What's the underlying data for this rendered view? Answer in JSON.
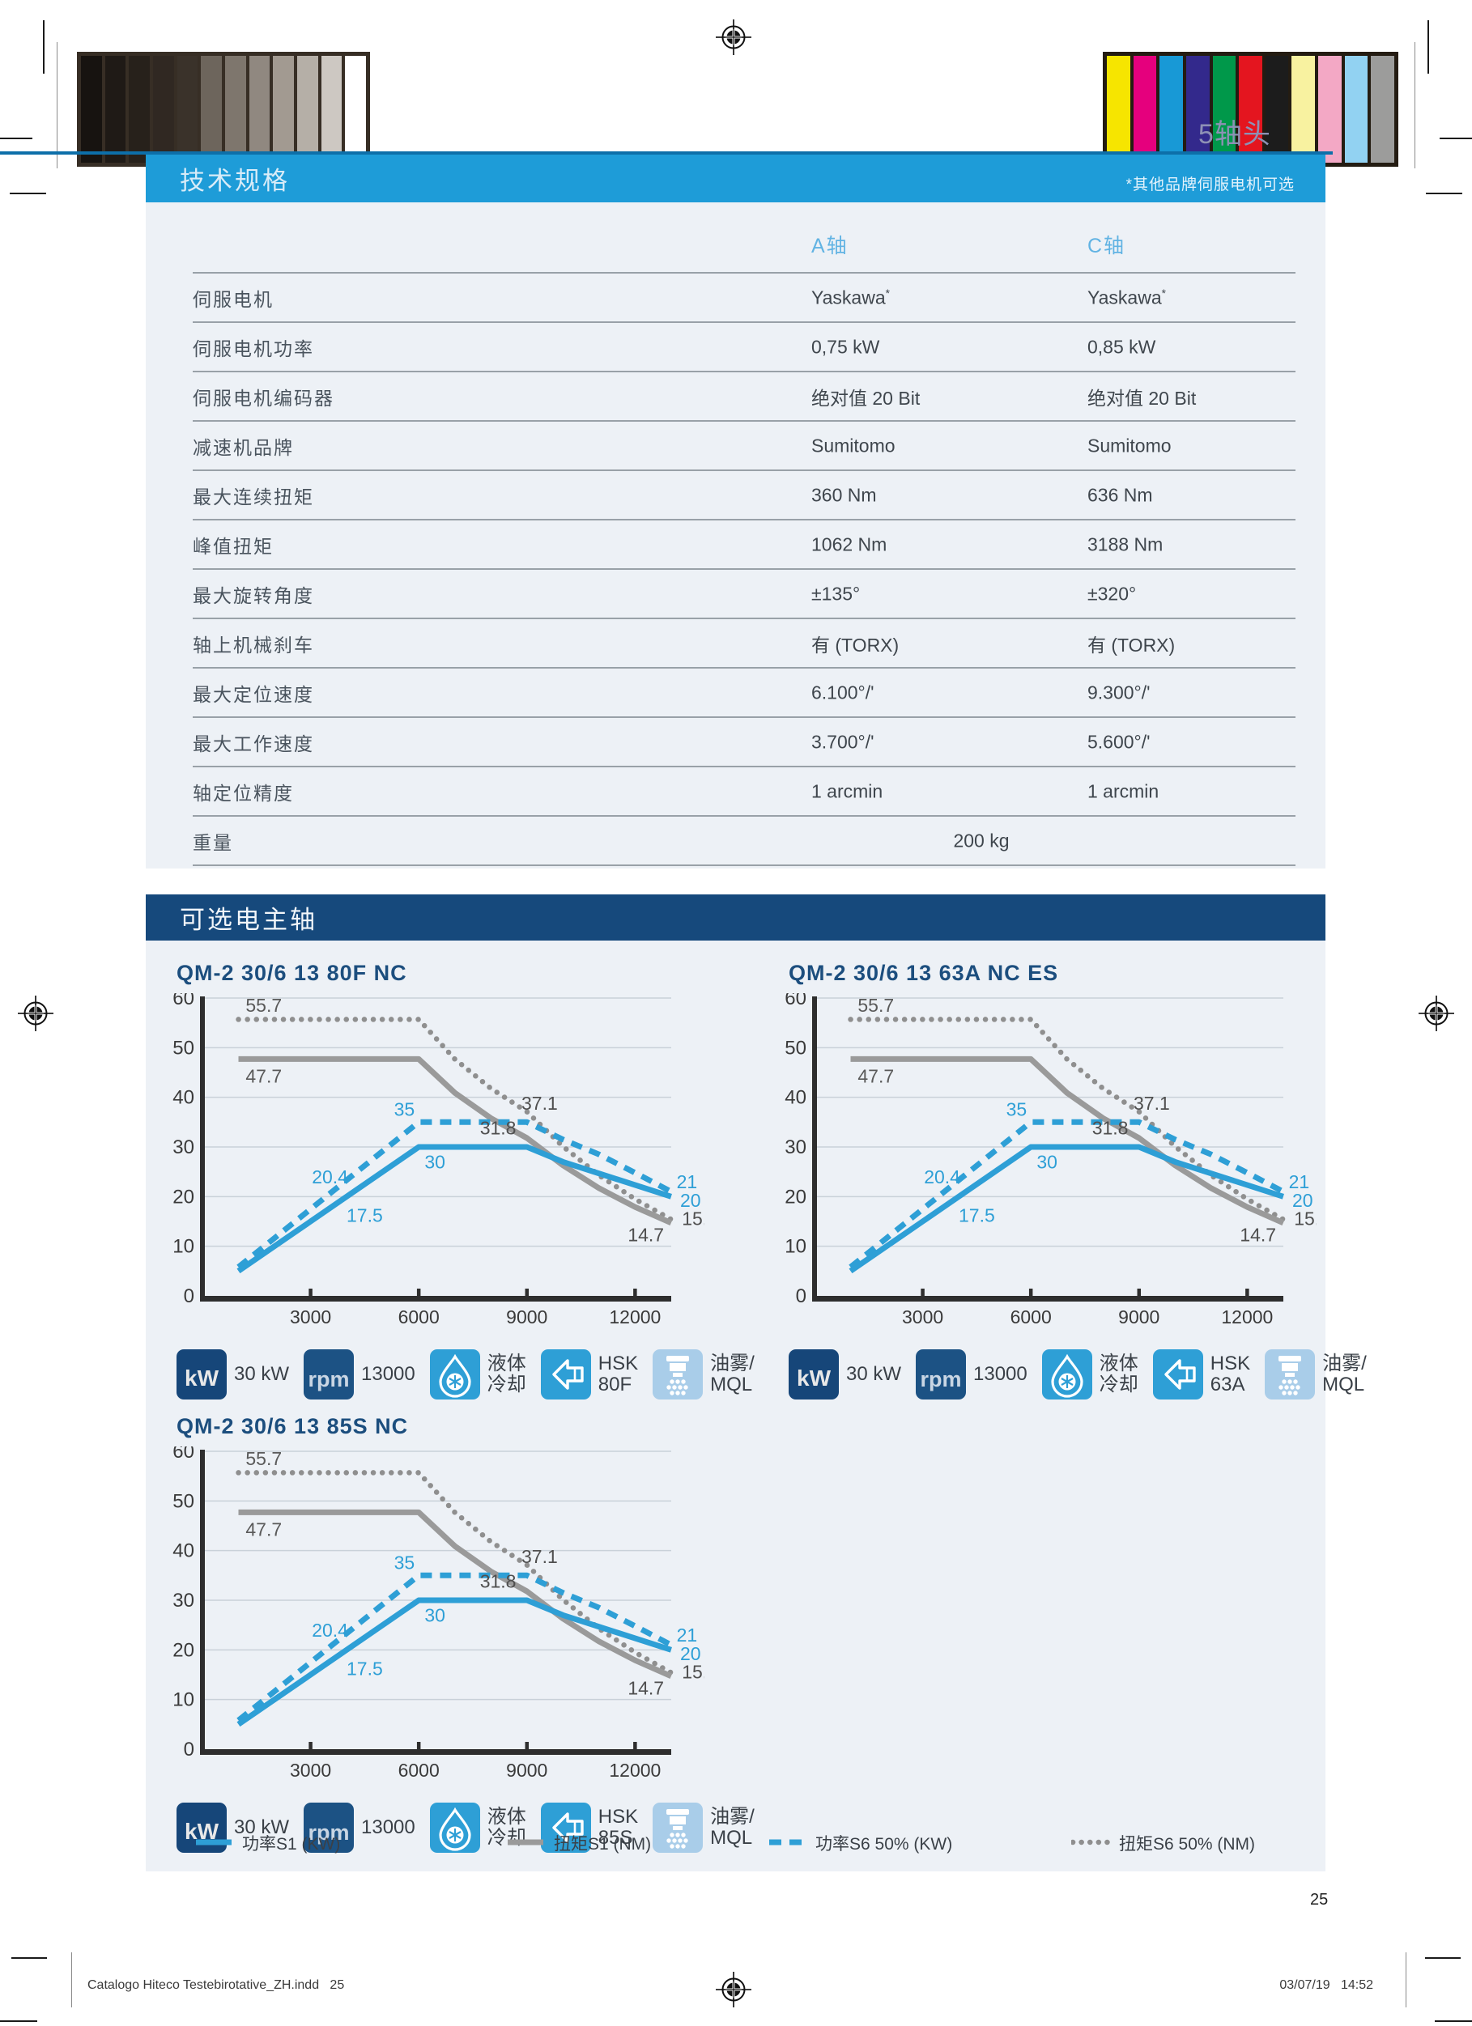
{
  "page": {
    "tag": "5轴头",
    "number": "25",
    "footer_left": "Catalogo Hiteco Testebirotative_ZH.indd   25",
    "footer_right": "03/07/19   14:52"
  },
  "colors": {
    "accent_blue": "#1E9CD8",
    "navy": "#16497C",
    "section_bg": "#EDF1F6",
    "rule_blue": "#0D6FA9",
    "tag_color": "#8E91B5",
    "line_blue": "#2E9FD6",
    "line_gray": "#9A9A9A",
    "grid": "#C9D1D9",
    "axis": "#2E2E2E",
    "spec_header_text": "#D8ECF8",
    "column_header_text": "#61B3E3",
    "chart_title_text": "#1C4E7E",
    "kw_badge": "#164679",
    "rpm_badge": "#1C5284",
    "coolant_badge": "#2E9FD6",
    "hsk_badge": "#2E9FD6",
    "mist_badge": "#A9CDE9"
  },
  "print_marks": {
    "grayscale": [
      "#171310",
      "#1f1a16",
      "#27211b",
      "#302822",
      "#3a322a",
      "#6d655c",
      "#7e766d",
      "#908880",
      "#a29a91",
      "#b5afa7",
      "#cdc8c2",
      "#ffffff"
    ],
    "color_bar": [
      "#f6e500",
      "#e5007d",
      "#1899d6",
      "#33298c",
      "#00984a",
      "#e4151f",
      "#1c1c1c",
      "#f8f2a0",
      "#f3a8c5",
      "#92d2f2",
      "#9c9c9b"
    ]
  },
  "spec_section": {
    "header": "技术规格",
    "note": "*其他品牌伺服电机可选",
    "columns": [
      "A轴",
      "C轴"
    ],
    "rows": [
      {
        "label": "伺服电机",
        "a": "Yaskawa*",
        "c": "Yaskawa*"
      },
      {
        "label": "伺服电机功率",
        "a": "0,75 kW",
        "c": "0,85 kW"
      },
      {
        "label": "伺服电机编码器",
        "a": "绝对值 20 Bit",
        "c": "绝对值 20 Bit"
      },
      {
        "label": "减速机品牌",
        "a": "Sumitomo",
        "c": "Sumitomo"
      },
      {
        "label": "最大连续扭矩",
        "a": "360 Nm",
        "c": "636 Nm"
      },
      {
        "label": "峰值扭矩",
        "a": "1062 Nm",
        "c": "3188 Nm"
      },
      {
        "label": "最大旋转角度",
        "a": "±135°",
        "c": "±320°"
      },
      {
        "label": "轴上机械刹车",
        "a": "有 (TORX)",
        "c": "有 (TORX)"
      },
      {
        "label": "最大定位速度",
        "a": "6.100°/'",
        "c": "9.300°/'"
      },
      {
        "label": "最大工作速度",
        "a": "3.700°/'",
        "c": "5.600°/'"
      },
      {
        "label": "轴定位精度",
        "a": "1 arcmin",
        "c": "1 arcmin"
      },
      {
        "label": "重量",
        "span": "200 kg"
      }
    ]
  },
  "spindle_section": {
    "header": "可选电主轴",
    "legend": [
      {
        "label": "功率S1 (KW)",
        "style": "solid",
        "color": "#2E9FD6"
      },
      {
        "label": "扭矩S1 (NM)",
        "style": "solid",
        "color": "#9A9A9A"
      },
      {
        "label": "功率S6 50% (KW)",
        "style": "dashed",
        "color": "#2E9FD6"
      },
      {
        "label": "扭矩S6 50% (NM)",
        "style": "dotted",
        "color": "#8F8F8F"
      }
    ]
  },
  "chart_data": [
    {
      "type": "line",
      "title": "QM-2 30/6 13 80F NC",
      "xlim": [
        0,
        13000
      ],
      "ylim": [
        0,
        60
      ],
      "x_ticks": [
        3000,
        6000,
        9000,
        12000
      ],
      "y_ticks": [
        0,
        10,
        20,
        30,
        40,
        50,
        60
      ],
      "series": [
        {
          "name": "扭矩S6 50% (NM)",
          "style": "dotted",
          "color": "#8F8F8F",
          "points": [
            [
              1000,
              55.7
            ],
            [
              6000,
              55.7
            ],
            [
              7000,
              47.7
            ],
            [
              8000,
              41.8
            ],
            [
              9000,
              37.1
            ],
            [
              10000,
              30.1
            ],
            [
              11000,
              24.3
            ],
            [
              12000,
              19.5
            ],
            [
              13000,
              15.4
            ]
          ]
        },
        {
          "name": "扭矩S1 (NM)",
          "style": "solid",
          "color": "#9A9A9A",
          "points": [
            [
              1000,
              47.7
            ],
            [
              6000,
              47.7
            ],
            [
              7000,
              40.9
            ],
            [
              8000,
              35.8
            ],
            [
              9000,
              31.8
            ],
            [
              10000,
              26.3
            ],
            [
              11000,
              21.7
            ],
            [
              12000,
              17.9
            ],
            [
              13000,
              14.7
            ]
          ]
        },
        {
          "name": "功率S6 50% (KW)",
          "style": "dashed",
          "color": "#2E9FD6",
          "points": [
            [
              1000,
              5.8
            ],
            [
              6000,
              35
            ],
            [
              9000,
              35
            ],
            [
              10000,
              31.5
            ],
            [
              11000,
              28.5
            ],
            [
              12000,
              24.8
            ],
            [
              13000,
              21
            ]
          ]
        },
        {
          "name": "功率S1 (KW)",
          "style": "solid",
          "color": "#2E9FD6",
          "points": [
            [
              1000,
              5
            ],
            [
              6000,
              30
            ],
            [
              9000,
              30
            ],
            [
              10000,
              27
            ],
            [
              13000,
              20
            ]
          ]
        }
      ],
      "annotations": [
        {
          "text": "55.7",
          "x": 1200,
          "y": 58.5,
          "color": "#5a5a5a",
          "anchor": "start"
        },
        {
          "text": "47.7",
          "x": 1200,
          "y": 44.3,
          "color": "#5a5a5a",
          "anchor": "start"
        },
        {
          "text": "35",
          "x": 5600,
          "y": 37.6,
          "color": "#2E9FD6"
        },
        {
          "text": "30",
          "x": 6450,
          "y": 27.0,
          "color": "#2E9FD6"
        },
        {
          "text": "20.4",
          "x": 3540,
          "y": 24.0,
          "color": "#2E9FD6"
        },
        {
          "text": "17.5",
          "x": 4500,
          "y": 16.2,
          "color": "#2E9FD6"
        },
        {
          "text": "37.1",
          "x": 9350,
          "y": 38.8,
          "color": "#4F4F4F"
        },
        {
          "text": "31.8",
          "x": 8200,
          "y": 33.8,
          "color": "#4F4F4F"
        },
        {
          "text": "21",
          "x": 13150,
          "y": 23.0,
          "color": "#2E9FD6",
          "anchor": "start"
        },
        {
          "text": "20",
          "x": 13250,
          "y": 19.2,
          "color": "#2E9FD6",
          "anchor": "start"
        },
        {
          "text": "15.4",
          "x": 13300,
          "y": 15.6,
          "color": "#4F4F4F",
          "anchor": "start"
        },
        {
          "text": "14.7",
          "x": 12300,
          "y": 12.3,
          "color": "#4F4F4F"
        }
      ],
      "icons": [
        {
          "type": "kw",
          "glyph": "kW",
          "label": [
            "30 kW"
          ]
        },
        {
          "type": "rpm",
          "glyph": "rpm",
          "label": [
            "13000"
          ]
        },
        {
          "type": "coolant",
          "label": [
            "液体",
            "冷却"
          ]
        },
        {
          "type": "hsk",
          "label": [
            "HSK",
            "80F"
          ]
        },
        {
          "type": "mist",
          "label": [
            "油雾/",
            "MQL"
          ]
        }
      ]
    },
    {
      "type": "line",
      "title": "QM-2 30/6 13 63A NC ES",
      "xlim": [
        0,
        13000
      ],
      "ylim": [
        0,
        60
      ],
      "x_ticks": [
        3000,
        6000,
        9000,
        12000
      ],
      "y_ticks": [
        0,
        10,
        20,
        30,
        40,
        50,
        60
      ],
      "series": [
        {
          "name": "扭矩S6 50% (NM)",
          "style": "dotted",
          "color": "#8F8F8F",
          "points": [
            [
              1000,
              55.7
            ],
            [
              6000,
              55.7
            ],
            [
              7000,
              47.7
            ],
            [
              8000,
              41.8
            ],
            [
              9000,
              37.1
            ],
            [
              10000,
              30.1
            ],
            [
              11000,
              24.3
            ],
            [
              12000,
              19.5
            ],
            [
              13000,
              15.4
            ]
          ]
        },
        {
          "name": "扭矩S1 (NM)",
          "style": "solid",
          "color": "#9A9A9A",
          "points": [
            [
              1000,
              47.7
            ],
            [
              6000,
              47.7
            ],
            [
              7000,
              40.9
            ],
            [
              8000,
              35.8
            ],
            [
              9000,
              31.8
            ],
            [
              10000,
              26.3
            ],
            [
              11000,
              21.7
            ],
            [
              12000,
              17.9
            ],
            [
              13000,
              14.7
            ]
          ]
        },
        {
          "name": "功率S6 50% (KW)",
          "style": "dashed",
          "color": "#2E9FD6",
          "points": [
            [
              1000,
              5.8
            ],
            [
              6000,
              35
            ],
            [
              9000,
              35
            ],
            [
              10000,
              31.5
            ],
            [
              11000,
              28.5
            ],
            [
              12000,
              24.8
            ],
            [
              13000,
              21
            ]
          ]
        },
        {
          "name": "功率S1 (KW)",
          "style": "solid",
          "color": "#2E9FD6",
          "points": [
            [
              1000,
              5
            ],
            [
              6000,
              30
            ],
            [
              9000,
              30
            ],
            [
              10000,
              27
            ],
            [
              13000,
              20
            ]
          ]
        }
      ],
      "annotations": [
        {
          "text": "55.7",
          "x": 1200,
          "y": 58.5,
          "color": "#5a5a5a",
          "anchor": "start"
        },
        {
          "text": "47.7",
          "x": 1200,
          "y": 44.3,
          "color": "#5a5a5a",
          "anchor": "start"
        },
        {
          "text": "35",
          "x": 5600,
          "y": 37.6,
          "color": "#2E9FD6"
        },
        {
          "text": "30",
          "x": 6450,
          "y": 27.0,
          "color": "#2E9FD6"
        },
        {
          "text": "20.4",
          "x": 3540,
          "y": 24.0,
          "color": "#2E9FD6"
        },
        {
          "text": "17.5",
          "x": 4500,
          "y": 16.2,
          "color": "#2E9FD6"
        },
        {
          "text": "37.1",
          "x": 9350,
          "y": 38.8,
          "color": "#4F4F4F"
        },
        {
          "text": "31.8",
          "x": 8200,
          "y": 33.8,
          "color": "#4F4F4F"
        },
        {
          "text": "21",
          "x": 13150,
          "y": 23.0,
          "color": "#2E9FD6",
          "anchor": "start"
        },
        {
          "text": "20",
          "x": 13250,
          "y": 19.2,
          "color": "#2E9FD6",
          "anchor": "start"
        },
        {
          "text": "15.4",
          "x": 13300,
          "y": 15.6,
          "color": "#4F4F4F",
          "anchor": "start"
        },
        {
          "text": "14.7",
          "x": 12300,
          "y": 12.3,
          "color": "#4F4F4F"
        }
      ],
      "icons": [
        {
          "type": "kw",
          "glyph": "kW",
          "label": [
            "30 kW"
          ]
        },
        {
          "type": "rpm",
          "glyph": "rpm",
          "label": [
            "13000"
          ]
        },
        {
          "type": "coolant",
          "label": [
            "液体",
            "冷却"
          ]
        },
        {
          "type": "hsk",
          "label": [
            "HSK",
            "63A"
          ]
        },
        {
          "type": "mist",
          "label": [
            "油雾/",
            "MQL"
          ]
        }
      ]
    },
    {
      "type": "line",
      "title": "QM-2 30/6 13 85S NC",
      "xlim": [
        0,
        13000
      ],
      "ylim": [
        0,
        60
      ],
      "x_ticks": [
        3000,
        6000,
        9000,
        12000
      ],
      "y_ticks": [
        0,
        10,
        20,
        30,
        40,
        50,
        60
      ],
      "series": [
        {
          "name": "扭矩S6 50% (NM)",
          "style": "dotted",
          "color": "#8F8F8F",
          "points": [
            [
              1000,
              55.7
            ],
            [
              6000,
              55.7
            ],
            [
              7000,
              47.7
            ],
            [
              8000,
              41.8
            ],
            [
              9000,
              37.1
            ],
            [
              10000,
              30.1
            ],
            [
              11000,
              24.3
            ],
            [
              12000,
              19.5
            ],
            [
              13000,
              15.4
            ]
          ]
        },
        {
          "name": "扭矩S1 (NM)",
          "style": "solid",
          "color": "#9A9A9A",
          "points": [
            [
              1000,
              47.7
            ],
            [
              6000,
              47.7
            ],
            [
              7000,
              40.9
            ],
            [
              8000,
              35.8
            ],
            [
              9000,
              31.8
            ],
            [
              10000,
              26.3
            ],
            [
              11000,
              21.7
            ],
            [
              12000,
              17.9
            ],
            [
              13000,
              14.7
            ]
          ]
        },
        {
          "name": "功率S6 50% (KW)",
          "style": "dashed",
          "color": "#2E9FD6",
          "points": [
            [
              1000,
              5.8
            ],
            [
              6000,
              35
            ],
            [
              9000,
              35
            ],
            [
              10000,
              31.5
            ],
            [
              11000,
              28.5
            ],
            [
              12000,
              24.8
            ],
            [
              13000,
              21
            ]
          ]
        },
        {
          "name": "功率S1 (KW)",
          "style": "solid",
          "color": "#2E9FD6",
          "points": [
            [
              1000,
              5
            ],
            [
              6000,
              30
            ],
            [
              9000,
              30
            ],
            [
              10000,
              27
            ],
            [
              13000,
              20
            ]
          ]
        }
      ],
      "annotations": [
        {
          "text": "55.7",
          "x": 1200,
          "y": 58.5,
          "color": "#5a5a5a",
          "anchor": "start"
        },
        {
          "text": "47.7",
          "x": 1200,
          "y": 44.3,
          "color": "#5a5a5a",
          "anchor": "start"
        },
        {
          "text": "35",
          "x": 5600,
          "y": 37.6,
          "color": "#2E9FD6"
        },
        {
          "text": "30",
          "x": 6450,
          "y": 27.0,
          "color": "#2E9FD6"
        },
        {
          "text": "20.4",
          "x": 3540,
          "y": 24.0,
          "color": "#2E9FD6"
        },
        {
          "text": "17.5",
          "x": 4500,
          "y": 16.2,
          "color": "#2E9FD6"
        },
        {
          "text": "37.1",
          "x": 9350,
          "y": 38.8,
          "color": "#4F4F4F"
        },
        {
          "text": "31.8",
          "x": 8200,
          "y": 33.8,
          "color": "#4F4F4F"
        },
        {
          "text": "21",
          "x": 13150,
          "y": 23.0,
          "color": "#2E9FD6",
          "anchor": "start"
        },
        {
          "text": "20",
          "x": 13250,
          "y": 19.2,
          "color": "#2E9FD6",
          "anchor": "start"
        },
        {
          "text": "15.4",
          "x": 13300,
          "y": 15.6,
          "color": "#4F4F4F",
          "anchor": "start"
        },
        {
          "text": "14.7",
          "x": 12300,
          "y": 12.3,
          "color": "#4F4F4F"
        }
      ],
      "icons": [
        {
          "type": "kw",
          "glyph": "kW",
          "label": [
            "30 kW"
          ]
        },
        {
          "type": "rpm",
          "glyph": "rpm",
          "label": [
            "13000"
          ]
        },
        {
          "type": "coolant",
          "label": [
            "液体",
            "冷却"
          ]
        },
        {
          "type": "hsk",
          "label": [
            "HSK",
            "85S"
          ]
        },
        {
          "type": "mist",
          "label": [
            "油雾/",
            "MQL"
          ]
        }
      ]
    }
  ]
}
